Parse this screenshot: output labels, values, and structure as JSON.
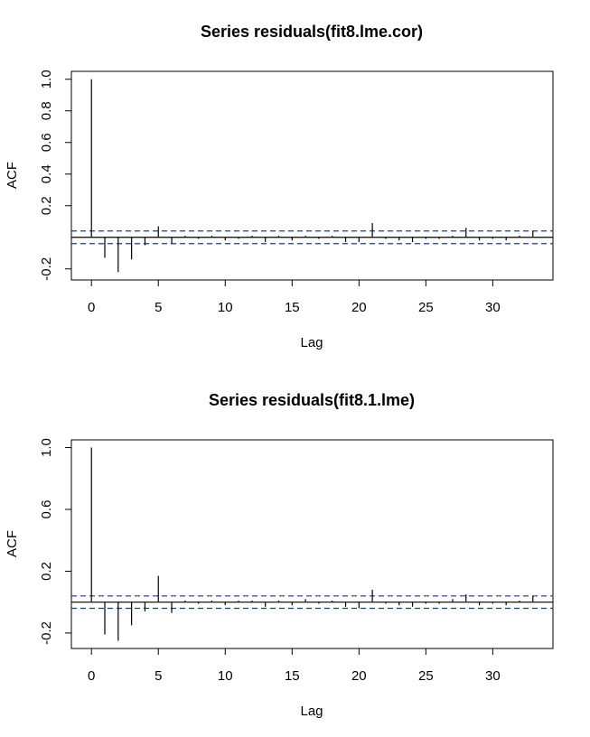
{
  "chart_data": [
    {
      "type": "bar",
      "title": "Series  residuals(fit8.lme.cor)",
      "xlabel": "Lag",
      "ylabel": "ACF",
      "xlim": [
        -1.5,
        34.5
      ],
      "ylim": [
        -0.27,
        1.05
      ],
      "xticks": [
        0,
        5,
        10,
        15,
        20,
        25,
        30
      ],
      "yticks": [
        -0.2,
        0.2,
        0.4,
        0.6,
        0.8,
        1.0
      ],
      "ytick_labels": [
        "-0.2",
        "0.2",
        "0.4",
        "0.6",
        "0.8",
        "1.0"
      ],
      "ci": [
        0.04,
        -0.04
      ],
      "lags": [
        0,
        1,
        2,
        3,
        4,
        5,
        6,
        7,
        8,
        9,
        10,
        11,
        12,
        13,
        14,
        15,
        16,
        17,
        18,
        19,
        20,
        21,
        22,
        23,
        24,
        25,
        26,
        27,
        28,
        29,
        30,
        31,
        32,
        33
      ],
      "acf": [
        1.0,
        -0.13,
        -0.22,
        -0.14,
        -0.05,
        0.07,
        -0.04,
        0.01,
        -0.01,
        0.01,
        -0.02,
        -0.01,
        0.01,
        -0.03,
        0.01,
        -0.02,
        0.01,
        -0.01,
        0.01,
        -0.03,
        -0.03,
        0.09,
        -0.01,
        -0.02,
        -0.03,
        -0.01,
        -0.01,
        0.01,
        0.06,
        -0.02,
        -0.01,
        -0.02,
        0.01,
        0.04
      ],
      "colors": {
        "spike": "#000000",
        "ci": "#1f3a93",
        "zero": "#000000"
      }
    },
    {
      "type": "bar",
      "title": "Series  residuals(fit8.1.lme)",
      "xlabel": "Lag",
      "ylabel": "ACF",
      "xlim": [
        -1.5,
        34.5
      ],
      "ylim": [
        -0.3,
        1.05
      ],
      "xticks": [
        0,
        5,
        10,
        15,
        20,
        25,
        30
      ],
      "yticks": [
        -0.2,
        0.2,
        0.6,
        1.0
      ],
      "ytick_labels": [
        "-0.2",
        "0.2",
        "0.6",
        "1.0"
      ],
      "ci": [
        0.04,
        -0.04
      ],
      "lags": [
        0,
        1,
        2,
        3,
        4,
        5,
        6,
        7,
        8,
        9,
        10,
        11,
        12,
        13,
        14,
        15,
        16,
        17,
        18,
        19,
        20,
        21,
        22,
        23,
        24,
        25,
        26,
        27,
        28,
        29,
        30,
        31,
        32,
        33
      ],
      "acf": [
        1.0,
        -0.21,
        -0.25,
        -0.15,
        -0.06,
        0.17,
        -0.07,
        0.01,
        -0.01,
        0.01,
        -0.02,
        0.01,
        0.01,
        -0.03,
        0.01,
        -0.02,
        0.02,
        -0.01,
        0.01,
        -0.03,
        -0.04,
        0.08,
        -0.01,
        -0.02,
        -0.03,
        -0.01,
        -0.01,
        0.02,
        0.05,
        -0.02,
        -0.01,
        -0.02,
        0.01,
        0.04
      ],
      "colors": {
        "spike": "#000000",
        "ci": "#1f3a93",
        "zero": "#000000"
      }
    }
  ]
}
